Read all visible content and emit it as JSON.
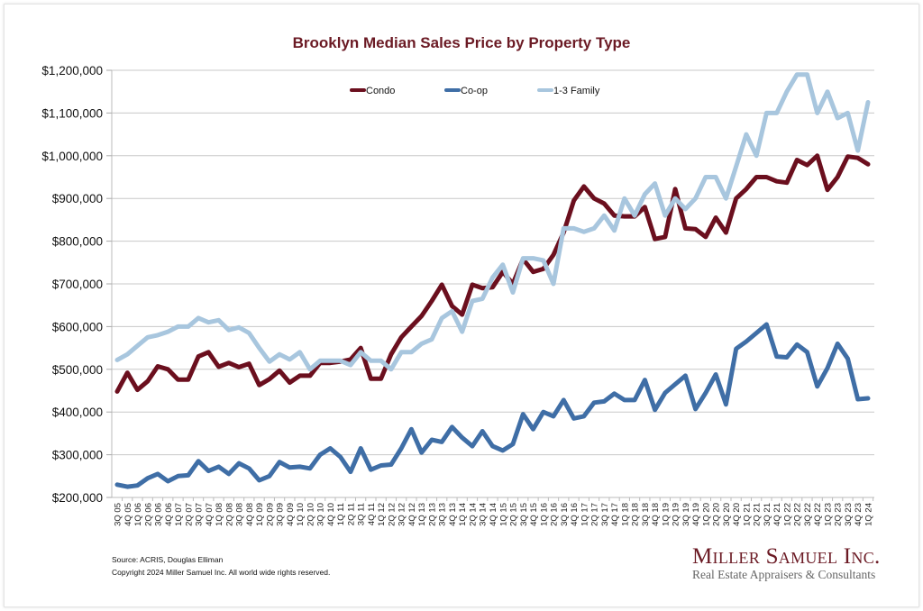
{
  "chart_data": {
    "type": "line",
    "title": "Brooklyn Median Sales Price by Property Type",
    "xlabel": "",
    "ylabel": "",
    "ylim": [
      200000,
      1200000
    ],
    "yticks": [
      200000,
      300000,
      400000,
      500000,
      600000,
      700000,
      800000,
      900000,
      1000000,
      1100000,
      1200000
    ],
    "ytick_labels": [
      "$200,000",
      "$300,000",
      "$400,000",
      "$500,000",
      "$600,000",
      "$700,000",
      "$800,000",
      "$900,000",
      "$1,000,000",
      "$1,100,000",
      "$1,200,000"
    ],
    "grid": true,
    "legend_position": "top-center",
    "categories": [
      "3Q 05",
      "4Q 05",
      "1Q 06",
      "2Q 06",
      "3Q 06",
      "4Q 06",
      "1Q 07",
      "2Q 07",
      "3Q 07",
      "4Q 07",
      "1Q 08",
      "2Q 08",
      "3Q 08",
      "4Q 08",
      "1Q 09",
      "2Q 09",
      "3Q 09",
      "4Q 09",
      "1Q 10",
      "2Q 10",
      "3Q 10",
      "4Q 10",
      "1Q 11",
      "2Q 11",
      "3Q 11",
      "4Q 11",
      "1Q 12",
      "2Q 12",
      "3Q 12",
      "4Q 12",
      "1Q 13",
      "2Q 13",
      "3Q 13",
      "4Q 13",
      "1Q 14",
      "2Q 14",
      "3Q 14",
      "4Q 14",
      "1Q 15",
      "2Q 15",
      "3Q 15",
      "4Q 15",
      "1Q 16",
      "2Q 16",
      "3Q 16",
      "4Q 16",
      "1Q 17",
      "2Q 17",
      "3Q 17",
      "4Q 17",
      "1Q 18",
      "2Q 18",
      "3Q 18",
      "4Q 18",
      "1Q 19",
      "2Q 19",
      "3Q 19",
      "4Q 19",
      "1Q 20",
      "2Q 20",
      "3Q 20",
      "4Q 20",
      "1Q 21",
      "2Q 21",
      "3Q 21",
      "4Q 21",
      "1Q 22",
      "2Q 22",
      "3Q 22",
      "4Q 22",
      "1Q 23",
      "2Q 23",
      "3Q 23",
      "4Q 23",
      "1Q 24"
    ],
    "series": [
      {
        "name": "Condo",
        "color": "#6b0f1e",
        "values": [
          448000,
          492000,
          452000,
          472000,
          507000,
          500000,
          476000,
          476000,
          530000,
          540000,
          506000,
          515000,
          505000,
          513000,
          463000,
          477000,
          497000,
          469000,
          485000,
          485000,
          515000,
          515000,
          518000,
          523000,
          550000,
          478000,
          478000,
          535000,
          575000,
          600000,
          625000,
          660000,
          698000,
          648000,
          628000,
          698000,
          690000,
          692000,
          728000,
          700000,
          758000,
          728000,
          735000,
          768000,
          820000,
          895000,
          928000,
          900000,
          888000,
          860000,
          858000,
          858000,
          880000,
          805000,
          810000,
          922000,
          830000,
          828000,
          810000,
          855000,
          820000,
          900000,
          922000,
          950000,
          950000,
          940000,
          937000,
          990000,
          978000,
          1000000,
          920000,
          950000,
          998000,
          995000,
          980000
        ]
      },
      {
        "name": "Co-op",
        "color": "#3f6ea6",
        "values": [
          230000,
          225000,
          228000,
          245000,
          255000,
          238000,
          250000,
          252000,
          285000,
          262000,
          272000,
          255000,
          280000,
          268000,
          240000,
          250000,
          283000,
          270000,
          272000,
          268000,
          300000,
          315000,
          295000,
          260000,
          315000,
          265000,
          275000,
          277000,
          315000,
          360000,
          305000,
          335000,
          330000,
          365000,
          340000,
          320000,
          355000,
          320000,
          310000,
          325000,
          395000,
          360000,
          400000,
          390000,
          428000,
          385000,
          390000,
          422000,
          425000,
          443000,
          428000,
          428000,
          475000,
          405000,
          445000,
          465000,
          485000,
          407000,
          445000,
          488000,
          418000,
          548000,
          565000,
          585000,
          605000,
          530000,
          528000,
          558000,
          540000,
          460000,
          503000,
          560000,
          525000,
          430000,
          432000
        ]
      },
      {
        "name": "1-3 Family",
        "color": "#a8c6de",
        "values": [
          522000,
          535000,
          555000,
          575000,
          580000,
          588000,
          600000,
          600000,
          620000,
          610000,
          615000,
          592000,
          598000,
          585000,
          550000,
          518000,
          535000,
          523000,
          540000,
          500000,
          520000,
          520000,
          520000,
          510000,
          540000,
          520000,
          520000,
          500000,
          540000,
          540000,
          560000,
          570000,
          620000,
          636000,
          588000,
          660000,
          665000,
          715000,
          745000,
          680000,
          760000,
          760000,
          755000,
          700000,
          830000,
          830000,
          822000,
          830000,
          860000,
          825000,
          900000,
          860000,
          910000,
          935000,
          860000,
          900000,
          875000,
          900000,
          950000,
          950000,
          900000,
          975000,
          1050000,
          1000000,
          1100000,
          1100000,
          1150000,
          1190000,
          1190000,
          1100000,
          1150000,
          1088000,
          1100000,
          1012000,
          1125000
        ]
      }
    ]
  },
  "footer": {
    "source": "Source: ACRIS, Douglas Elliman",
    "copyright": "Copyright 2024 Miller Samuel Inc.  All world wide rights reserved."
  },
  "logo": {
    "name": "Miller Samuel Inc.",
    "tagline": "Real Estate Appraisers & Consultants"
  }
}
